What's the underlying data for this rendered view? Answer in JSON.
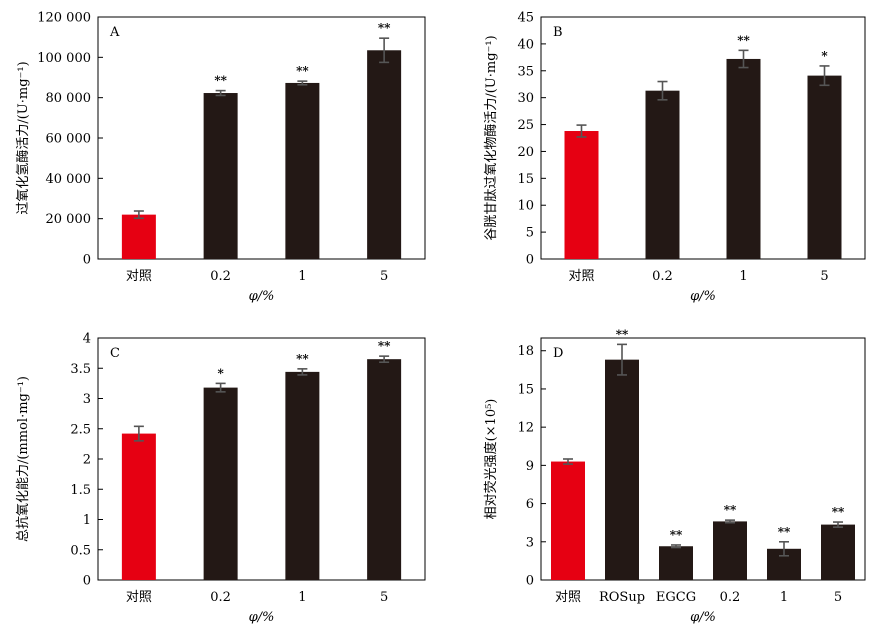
{
  "colors": {
    "control": "#e60012",
    "treatment": "#231815",
    "axis": "#000000",
    "errorbar": "#555555"
  },
  "chart_data": [
    {
      "type": "bar",
      "panel": "A",
      "ylabel": "过氧化氢酶活力/(U·mg⁻¹)",
      "xlabel": "φ/%",
      "categories": [
        "对照",
        "0.2",
        "1",
        "5"
      ],
      "values": [
        22000,
        82300,
        87300,
        103500
      ],
      "errors": [
        1800,
        1200,
        900,
        6000
      ],
      "significance": [
        "",
        "**",
        "**",
        "**"
      ],
      "ylim": [
        0,
        120000
      ],
      "yticks": [
        0,
        20000,
        40000,
        60000,
        80000,
        100000,
        120000
      ],
      "ytick_labels": [
        "0",
        "20 000",
        "40 000",
        "60 000",
        "80 000",
        "100 000",
        "120 000"
      ],
      "grid": false
    },
    {
      "type": "bar",
      "panel": "B",
      "ylabel": "谷胱甘肽过氧化物酶活力/(U·mg⁻¹)",
      "xlabel": "φ/%",
      "categories": [
        "对照",
        "0.2",
        "1",
        "5"
      ],
      "values": [
        23.8,
        31.3,
        37.2,
        34.1
      ],
      "errors": [
        1.1,
        1.7,
        1.6,
        1.8
      ],
      "significance": [
        "",
        "",
        "**",
        "*"
      ],
      "ylim": [
        0,
        45
      ],
      "yticks": [
        0,
        5,
        10,
        15,
        20,
        25,
        30,
        35,
        40,
        45
      ],
      "ytick_labels": [
        "0",
        "5",
        "10",
        "15",
        "20",
        "25",
        "30",
        "35",
        "40",
        "45"
      ],
      "grid": false
    },
    {
      "type": "bar",
      "panel": "C",
      "ylabel": "总抗氧化能力/(mmol·mg⁻¹)",
      "xlabel": "φ/%",
      "categories": [
        "对照",
        "0.2",
        "1",
        "5"
      ],
      "values": [
        2.42,
        3.18,
        3.44,
        3.65
      ],
      "errors": [
        0.12,
        0.07,
        0.05,
        0.05
      ],
      "significance": [
        "",
        "*",
        "**",
        "**"
      ],
      "ylim": [
        0,
        4
      ],
      "yticks": [
        0,
        0.5,
        1,
        1.5,
        2,
        2.5,
        3,
        3.5,
        4
      ],
      "ytick_labels": [
        "0",
        "0.5",
        "1",
        "1.5",
        "2",
        "2.5",
        "3",
        "3.5",
        "4"
      ],
      "grid": false
    },
    {
      "type": "bar",
      "panel": "D",
      "ylabel": "相对荧光强度(×10⁵)",
      "xlabel": "φ/%",
      "categories": [
        "对照",
        "ROSup",
        "EGCG",
        "0.2",
        "1",
        "5"
      ],
      "values": [
        9.3,
        17.3,
        2.65,
        4.6,
        2.45,
        4.35
      ],
      "errors": [
        0.2,
        1.2,
        0.1,
        0.1,
        0.55,
        0.2
      ],
      "significance": [
        "",
        "**",
        "**",
        "**",
        "**",
        "**"
      ],
      "ylim": [
        0,
        19
      ],
      "yticks": [
        0,
        3,
        6,
        9,
        12,
        15,
        18
      ],
      "ytick_labels": [
        "0",
        "3",
        "6",
        "9",
        "12",
        "15",
        "18"
      ],
      "grid": false
    }
  ]
}
